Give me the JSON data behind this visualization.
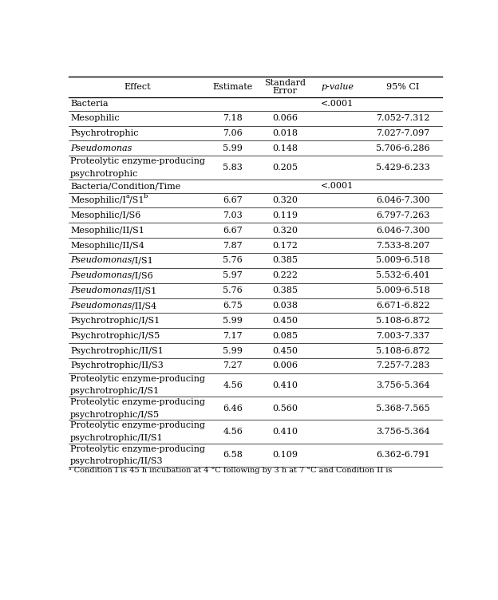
{
  "headers": [
    "Effect",
    "Estimate",
    "Standard\nError",
    "p-value",
    "95% CI"
  ],
  "rows": [
    {
      "effect": "Bacteria",
      "estimate": "",
      "std_error": "",
      "p_value": "<.0001",
      "ci": "",
      "italic": false,
      "section_header": true,
      "two_line": false
    },
    {
      "effect": "Mesophilic",
      "estimate": "7.18",
      "std_error": "0.066",
      "p_value": "",
      "ci": "7.052-7.312",
      "italic": false,
      "section_header": false,
      "two_line": false
    },
    {
      "effect": "Psychrotrophic",
      "estimate": "7.06",
      "std_error": "0.018",
      "p_value": "",
      "ci": "7.027-7.097",
      "italic": false,
      "section_header": false,
      "two_line": false
    },
    {
      "effect": "Pseudomonas",
      "estimate": "5.99",
      "std_error": "0.148",
      "p_value": "",
      "ci": "5.706-6.286",
      "italic": true,
      "section_header": false,
      "two_line": false
    },
    {
      "effect_line1": "Proteolytic enzyme-producing",
      "effect_line2": "psychrotrophic",
      "estimate": "5.83",
      "std_error": "0.205",
      "p_value": "",
      "ci": "5.429-6.233",
      "italic": false,
      "section_header": false,
      "two_line": true
    },
    {
      "effect": "Bacteria/Condition/Time",
      "estimate": "",
      "std_error": "",
      "p_value": "<.0001",
      "ci": "",
      "italic": false,
      "section_header": true,
      "two_line": false
    },
    {
      "effect": "Mesophilic/I",
      "effect_sup": "a",
      "effect_mid": "/S1",
      "effect_sup2": "b",
      "estimate": "6.67",
      "std_error": "0.320",
      "p_value": "",
      "ci": "6.046-7.300",
      "italic": false,
      "section_header": false,
      "two_line": false,
      "has_super": true
    },
    {
      "effect": "Mesophilic/I/S6",
      "estimate": "7.03",
      "std_error": "0.119",
      "p_value": "",
      "ci": "6.797-7.263",
      "italic": false,
      "section_header": false,
      "two_line": false
    },
    {
      "effect": "Mesophilic/II/S1",
      "estimate": "6.67",
      "std_error": "0.320",
      "p_value": "",
      "ci": "6.046-7.300",
      "italic": false,
      "section_header": false,
      "two_line": false
    },
    {
      "effect": "Mesophilic/II/S4",
      "estimate": "7.87",
      "std_error": "0.172",
      "p_value": "",
      "ci": "7.533-8.207",
      "italic": false,
      "section_header": false,
      "two_line": false
    },
    {
      "effect_italic": "Pseudomonas",
      "effect_normal": "/I/S1",
      "estimate": "5.76",
      "std_error": "0.385",
      "p_value": "",
      "ci": "5.009-6.518",
      "italic": true,
      "section_header": false,
      "two_line": false,
      "mixed_italic": true
    },
    {
      "effect_italic": "Pseudomonas",
      "effect_normal": "/I/S6",
      "estimate": "5.97",
      "std_error": "0.222",
      "p_value": "",
      "ci": "5.532-6.401",
      "italic": true,
      "section_header": false,
      "two_line": false,
      "mixed_italic": true
    },
    {
      "effect_italic": "Pseudomonas",
      "effect_normal": "/II/S1",
      "estimate": "5.76",
      "std_error": "0.385",
      "p_value": "",
      "ci": "5.009-6.518",
      "italic": true,
      "section_header": false,
      "two_line": false,
      "mixed_italic": true
    },
    {
      "effect_italic": "Pseudomonas",
      "effect_normal": "/II/S4",
      "estimate": "6.75",
      "std_error": "0.038",
      "p_value": "",
      "ci": "6.671-6.822",
      "italic": true,
      "section_header": false,
      "two_line": false,
      "mixed_italic": true
    },
    {
      "effect": "Psychrotrophic/I/S1",
      "estimate": "5.99",
      "std_error": "0.450",
      "p_value": "",
      "ci": "5.108-6.872",
      "italic": false,
      "section_header": false,
      "two_line": false
    },
    {
      "effect": "Psychrotrophic/I/S5",
      "estimate": "7.17",
      "std_error": "0.085",
      "p_value": "",
      "ci": "7.003-7.337",
      "italic": false,
      "section_header": false,
      "two_line": false
    },
    {
      "effect": "Psychrotrophic/II/S1",
      "estimate": "5.99",
      "std_error": "0.450",
      "p_value": "",
      "ci": "5.108-6.872",
      "italic": false,
      "section_header": false,
      "two_line": false
    },
    {
      "effect": "Psychrotrophic/II/S3",
      "estimate": "7.27",
      "std_error": "0.006",
      "p_value": "",
      "ci": "7.257-7.283",
      "italic": false,
      "section_header": false,
      "two_line": false
    },
    {
      "effect_line1": "Proteolytic enzyme-producing",
      "effect_line2": "psychrotrophic/I/S1",
      "estimate": "4.56",
      "std_error": "0.410",
      "p_value": "",
      "ci": "3.756-5.364",
      "italic": false,
      "section_header": false,
      "two_line": true
    },
    {
      "effect_line1": "Proteolytic enzyme-producing",
      "effect_line2": "psychrotrophic/I/S5",
      "estimate": "6.46",
      "std_error": "0.560",
      "p_value": "",
      "ci": "5.368-7.565",
      "italic": false,
      "section_header": false,
      "two_line": true
    },
    {
      "effect_line1": "Proteolytic enzyme-producing",
      "effect_line2": "psychrotrophic/II/S1",
      "estimate": "4.56",
      "std_error": "0.410",
      "p_value": "",
      "ci": "3.756-5.364",
      "italic": false,
      "section_header": false,
      "two_line": true
    },
    {
      "effect_line1": "Proteolytic enzyme-producing",
      "effect_line2": "psychrotrophic/II/S3",
      "estimate": "6.58",
      "std_error": "0.109",
      "p_value": "",
      "ci": "6.362-6.791",
      "italic": false,
      "section_header": false,
      "two_line": true
    }
  ],
  "footnote": "ᵃ Condition I is 45 h incubation at 4 °C following by 3 h at 7 °C and Condition II is",
  "font_size": 8.0,
  "bg_color": "#ffffff"
}
